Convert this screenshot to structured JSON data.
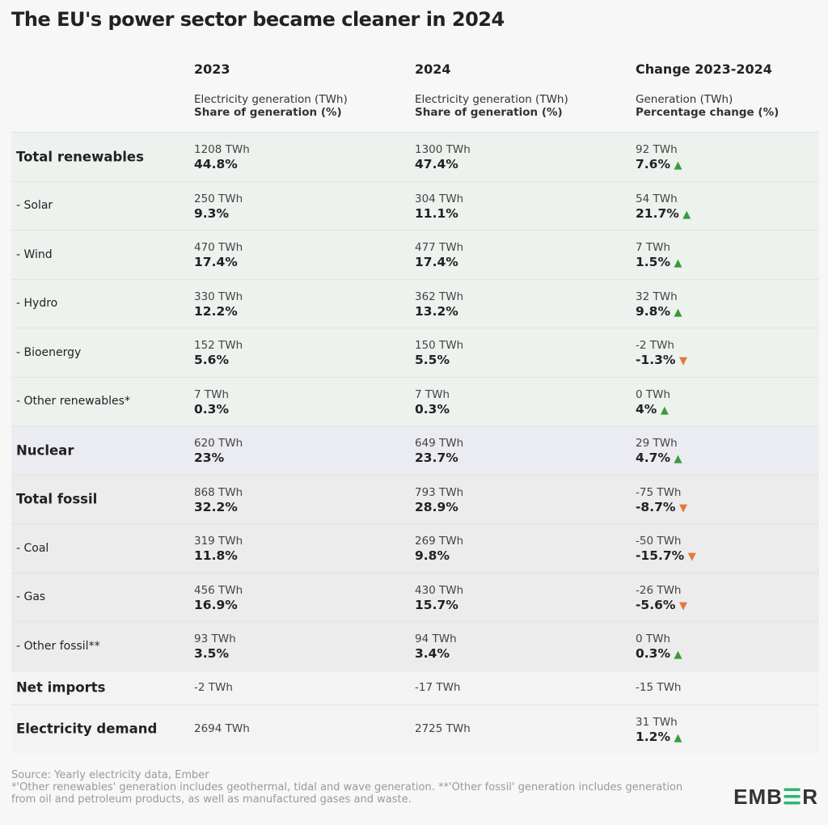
{
  "title": "The EU's power sector became cleaner in 2024",
  "columns": [
    {
      "year": "2023",
      "line1": "Electricity generation (TWh)",
      "line2": "Share of generation (%)"
    },
    {
      "year": "2024",
      "line1": "Electricity generation (TWh)",
      "line2": "Share of generation (%)"
    },
    {
      "year": "Change 2023-2024",
      "line1": "Generation (TWh)",
      "line2": "Percentage change (%)"
    }
  ],
  "chart_data": {
    "type": "table",
    "title": "The EU's power sector became cleaner in 2024",
    "rows": [
      {
        "label": "Total renewables",
        "main": true,
        "group": "green",
        "c2023": [
          "1208 TWh",
          "44.8%"
        ],
        "c2024": [
          "1300 TWh",
          "47.4%"
        ],
        "change": [
          "92 TWh",
          "7.6%"
        ],
        "dir": "up"
      },
      {
        "label": "- Solar",
        "main": false,
        "group": "green",
        "c2023": [
          "250 TWh",
          "9.3%"
        ],
        "c2024": [
          "304 TWh",
          "11.1%"
        ],
        "change": [
          "54 TWh",
          "21.7%"
        ],
        "dir": "up"
      },
      {
        "label": "- Wind",
        "main": false,
        "group": "green",
        "c2023": [
          "470 TWh",
          "17.4%"
        ],
        "c2024": [
          "477 TWh",
          "17.4%"
        ],
        "change": [
          "7 TWh",
          "1.5%"
        ],
        "dir": "up"
      },
      {
        "label": "- Hydro",
        "main": false,
        "group": "green",
        "c2023": [
          "330 TWh",
          "12.2%"
        ],
        "c2024": [
          "362 TWh",
          "13.2%"
        ],
        "change": [
          "32 TWh",
          "9.8%"
        ],
        "dir": "up"
      },
      {
        "label": "- Bioenergy",
        "main": false,
        "group": "green",
        "c2023": [
          "152 TWh",
          "5.6%"
        ],
        "c2024": [
          "150 TWh",
          "5.5%"
        ],
        "change": [
          "-2 TWh",
          "-1.3%"
        ],
        "dir": "down"
      },
      {
        "label": "- Other renewables*",
        "main": false,
        "group": "green",
        "c2023": [
          "7 TWh",
          "0.3%"
        ],
        "c2024": [
          "7 TWh",
          "0.3%"
        ],
        "change": [
          "0 TWh",
          "4%"
        ],
        "dir": "up"
      },
      {
        "label": "Nuclear",
        "main": true,
        "group": "purple",
        "c2023": [
          "620 TWh",
          "23%"
        ],
        "c2024": [
          "649 TWh",
          "23.7%"
        ],
        "change": [
          "29 TWh",
          "4.7%"
        ],
        "dir": "up"
      },
      {
        "label": "Total fossil",
        "main": true,
        "group": "grey",
        "c2023": [
          "868 TWh",
          "32.2%"
        ],
        "c2024": [
          "793 TWh",
          "28.9%"
        ],
        "change": [
          "-75 TWh",
          "-8.7%"
        ],
        "dir": "down"
      },
      {
        "label": "- Coal",
        "main": false,
        "group": "grey",
        "c2023": [
          "319 TWh",
          "11.8%"
        ],
        "c2024": [
          "269 TWh",
          "9.8%"
        ],
        "change": [
          "-50 TWh",
          "-15.7%"
        ],
        "dir": "down"
      },
      {
        "label": "- Gas",
        "main": false,
        "group": "grey",
        "c2023": [
          "456 TWh",
          "16.9%"
        ],
        "c2024": [
          "430 TWh",
          "15.7%"
        ],
        "change": [
          "-26 TWh",
          "-5.6%"
        ],
        "dir": "down"
      },
      {
        "label": "- Other fossil**",
        "main": false,
        "group": "grey",
        "c2023": [
          "93 TWh",
          "3.5%"
        ],
        "c2024": [
          "94 TWh",
          "3.4%"
        ],
        "change": [
          "0 TWh",
          "0.3%"
        ],
        "dir": "up"
      },
      {
        "label": "Net imports",
        "main": true,
        "group": "plain",
        "short": true,
        "c2023": [
          "-2 TWh"
        ],
        "c2024": [
          "-17 TWh"
        ],
        "change": [
          "-15 TWh"
        ],
        "dir": ""
      },
      {
        "label": "Electricity demand",
        "main": true,
        "group": "plain",
        "c2023": [
          "2694 TWh"
        ],
        "c2024": [
          "2725 TWh"
        ],
        "change": [
          "31 TWh",
          "1.2%"
        ],
        "dir": "up"
      }
    ]
  },
  "source": "Source: Yearly electricity data, Ember",
  "footnote": "*'Other renewables' generation includes geothermal, tidal and wave generation. **'Other fossil' generation includes generation from oil and petroleum products, as well as manufactured gases and waste.",
  "logo": "EMBER",
  "colors": {
    "up": "#3a9a3a",
    "down": "#e07a3c",
    "logo_accent": "#2bb673"
  }
}
